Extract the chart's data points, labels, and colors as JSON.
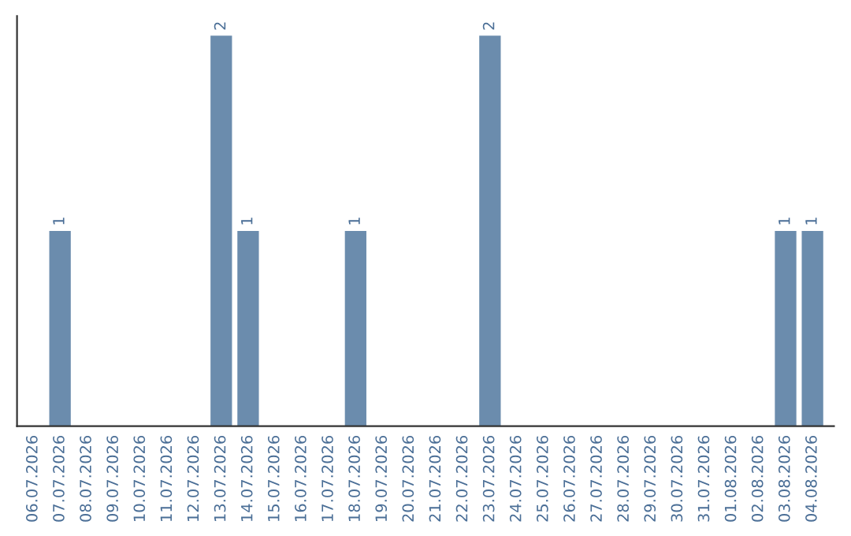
{
  "chart_data": {
    "type": "bar",
    "categories": [
      "06.07.2026",
      "07.07.2026",
      "08.07.2026",
      "09.07.2026",
      "10.07.2026",
      "11.07.2026",
      "12.07.2026",
      "13.07.2026",
      "14.07.2026",
      "15.07.2026",
      "16.07.2026",
      "17.07.2026",
      "18.07.2026",
      "19.07.2026",
      "20.07.2026",
      "21.07.2026",
      "22.07.2026",
      "23.07.2026",
      "24.07.2026",
      "25.07.2026",
      "26.07.2026",
      "27.07.2026",
      "28.07.2026",
      "29.07.2026",
      "30.07.2026",
      "31.07.2026",
      "01.08.2026",
      "02.08.2026",
      "03.08.2026",
      "04.08.2026"
    ],
    "values": [
      0,
      1,
      0,
      0,
      0,
      0,
      0,
      2,
      1,
      0,
      0,
      0,
      1,
      0,
      0,
      0,
      0,
      2,
      0,
      0,
      0,
      0,
      0,
      0,
      0,
      0,
      0,
      0,
      1,
      1
    ],
    "color": "#6b8cad",
    "value_labels": [
      null,
      "1",
      null,
      null,
      null,
      null,
      null,
      "2",
      "1",
      null,
      null,
      null,
      "1",
      null,
      null,
      null,
      null,
      "2",
      null,
      null,
      null,
      null,
      null,
      null,
      null,
      null,
      null,
      null,
      "1",
      "1"
    ],
    "ylim": [
      0,
      2.1
    ],
    "tick_labels": "x",
    "grid": false,
    "legend": false
  }
}
